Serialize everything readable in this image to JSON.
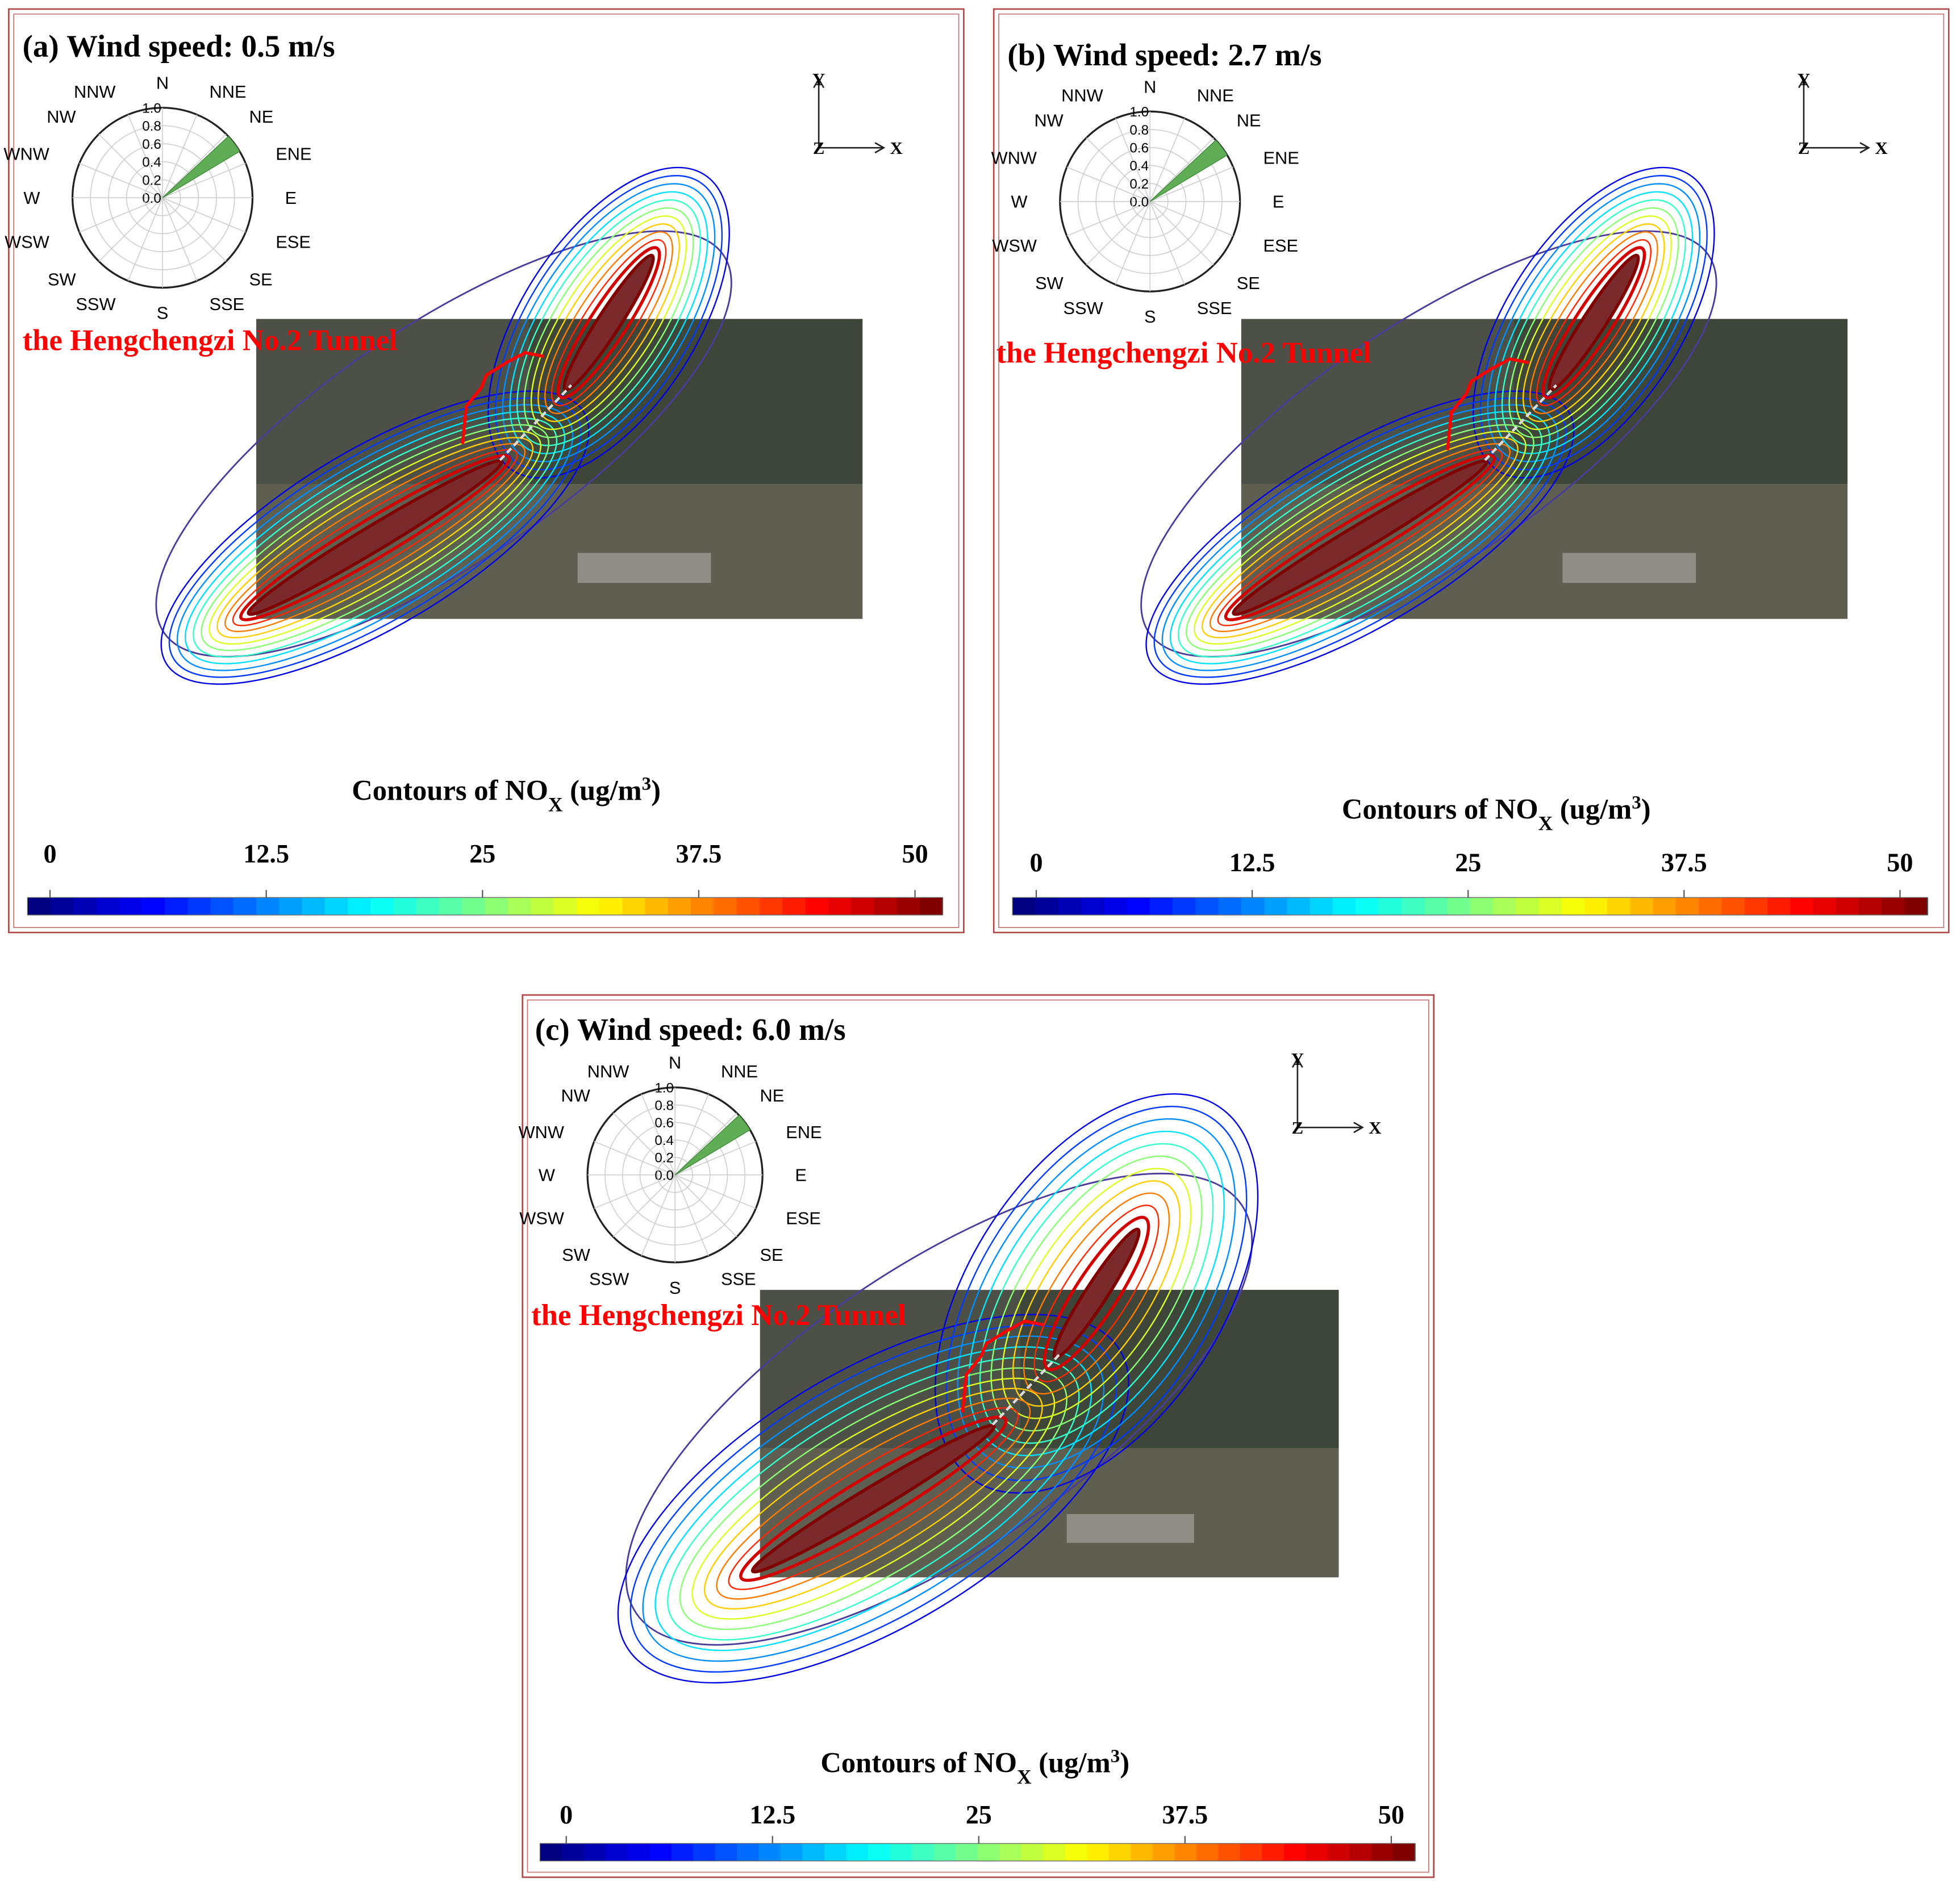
{
  "chart_data": [
    {
      "type": "contour",
      "panel_label": "(a)",
      "title": "Wind speed: 0.5 m/s",
      "tunnel_label": "the Hengchengzi No.2 Tunnel",
      "axis_labels": [
        "Y",
        "Z",
        "X"
      ],
      "wind_rose": {
        "directions": [
          "N",
          "NNE",
          "NE",
          "ENE",
          "E",
          "ESE",
          "SE",
          "SSE",
          "S",
          "SSW",
          "SW",
          "WSW",
          "W",
          "WNW",
          "NW",
          "NNW"
        ],
        "values": [
          0,
          0,
          1.0,
          0,
          0,
          0,
          0,
          0,
          0,
          0,
          0,
          0,
          0,
          0,
          0,
          0
        ],
        "color": "#5fae55",
        "rlim": [
          0,
          1
        ],
        "rticks": [
          {
            "value": 0,
            "label": "0.0"
          },
          0.2,
          0.4,
          0.6,
          0.8,
          {
            "value": 1,
            "label": "1.0"
          }
        ]
      },
      "colorbar": {
        "title": [
          "Contours of NO",
          "X",
          " (ug/m",
          "3",
          ")"
        ],
        "xlim": [
          0,
          50
        ],
        "xticks": [
          0,
          12.5,
          25,
          37.5,
          50
        ]
      }
    },
    {
      "type": "contour",
      "panel_label": "(b)",
      "title": "Wind speed: 2.7 m/s",
      "tunnel_label": "the Hengchengzi No.2 Tunnel",
      "axis_labels": [
        "Y",
        "Z",
        "X"
      ],
      "wind_rose": {
        "directions": [
          "N",
          "NNE",
          "NE",
          "ENE",
          "E",
          "ESE",
          "SE",
          "SSE",
          "S",
          "SSW",
          "SW",
          "WSW",
          "W",
          "WNW",
          "NW",
          "NNW"
        ],
        "values": [
          0,
          0,
          1.0,
          0,
          0,
          0,
          0,
          0,
          0,
          0,
          0,
          0,
          0,
          0,
          0,
          0
        ],
        "color": "#5fae55",
        "rlim": [
          0,
          1
        ],
        "rticks": [
          {
            "value": 0,
            "label": "0.0"
          },
          0.2,
          0.4,
          0.6,
          0.8,
          {
            "value": 1,
            "label": "1.0"
          }
        ]
      },
      "colorbar": {
        "title": [
          "Contours of NO",
          "X",
          " (ug/m",
          "3",
          ")"
        ],
        "xlim": [
          0,
          50
        ],
        "xticks": [
          0,
          12.5,
          25,
          37.5,
          50
        ]
      }
    },
    {
      "type": "contour",
      "panel_label": "(c)",
      "title": "Wind speed: 6.0 m/s",
      "tunnel_label": "the Hengchengzi No.2 Tunnel",
      "axis_labels": [
        "Y",
        "Z",
        "X"
      ],
      "wind_rose": {
        "directions": [
          "N",
          "NNE",
          "NE",
          "ENE",
          "E",
          "ESE",
          "SE",
          "SSE",
          "S",
          "SSW",
          "SW",
          "WSW",
          "W",
          "WNW",
          "NW",
          "NNW"
        ],
        "values": [
          0,
          0,
          1.0,
          0,
          0,
          0,
          0,
          0,
          0,
          0,
          0,
          0,
          0,
          0,
          0,
          0
        ],
        "color": "#5fae55",
        "rlim": [
          0,
          1
        ],
        "rticks": [
          {
            "value": 0,
            "label": "0.0"
          },
          0.2,
          0.4,
          0.6,
          0.8,
          {
            "value": 1,
            "label": "1.0"
          }
        ]
      },
      "colorbar": {
        "title": [
          "Contours of NO",
          "X",
          " (ug/m",
          "3",
          ")"
        ],
        "xlim": [
          0,
          50
        ],
        "xticks": [
          0,
          12.5,
          25,
          37.5,
          50
        ]
      }
    }
  ]
}
